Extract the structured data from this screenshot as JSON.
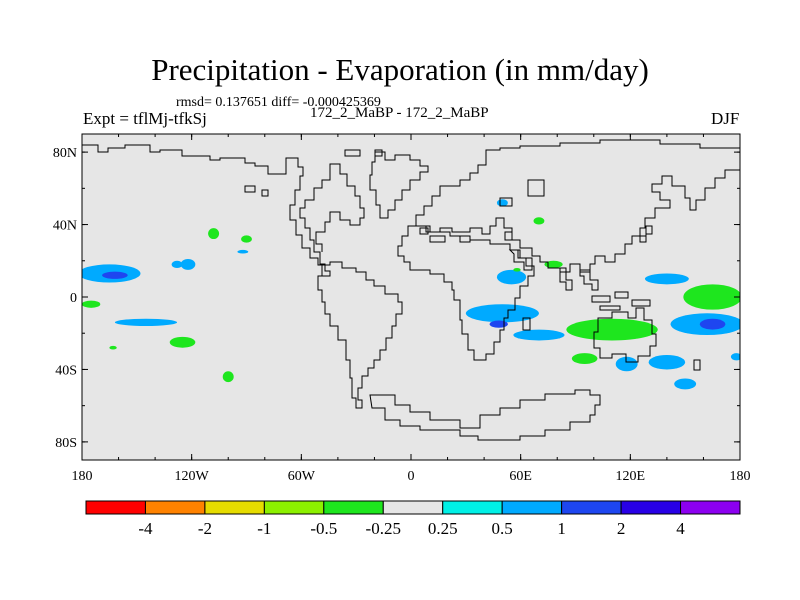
{
  "header": {
    "title": "Precipitation - Evaporation (in mm/day)",
    "stats": "rmsd= 0.137651  diff= -0.000425369",
    "left_label": "Expt = tflMj-tfkSj",
    "center_label": "172_2_MaBP - 172_2_MaBP",
    "right_label": "DJF"
  },
  "chart_data": {
    "type": "contour-map",
    "title": "Precipitation - Evaporation (in mm/day)",
    "season": "DJF",
    "x_axis": {
      "range": [
        -180,
        180
      ],
      "ticks": [
        -180,
        -120,
        -60,
        0,
        60,
        120,
        180
      ],
      "tick_labels": [
        "180",
        "120W",
        "60W",
        "0",
        "60E",
        "120E",
        "180"
      ]
    },
    "y_axis": {
      "range": [
        -90,
        90
      ],
      "ticks": [
        80,
        40,
        0,
        -40,
        -80
      ],
      "tick_labels": [
        "80N",
        "40N",
        "0",
        "40S",
        "80S"
      ]
    },
    "colorbar": {
      "colors": [
        "#ff0000",
        "#ff8200",
        "#e6dc00",
        "#8cf000",
        "#1ee61e",
        "#e6e6e6",
        "#00f0e6",
        "#00aaff",
        "#1e46f0",
        "#2800e6",
        "#8c00f0"
      ],
      "labels": [
        "-4",
        "-2",
        "-1",
        "-0.5",
        "-0.25",
        "0.25",
        "0.5",
        "1",
        "2",
        "4"
      ]
    },
    "background_color": "#e6e6e6",
    "anomaly_patches": [
      {
        "lon": -165,
        "lat": 13,
        "rlon": 17,
        "rlat": 5,
        "level": "0.5"
      },
      {
        "lon": -162,
        "lat": 12,
        "rlon": 7,
        "rlat": 2,
        "level": "1"
      },
      {
        "lon": -145,
        "lat": -14,
        "rlon": 17,
        "rlat": 2,
        "level": "0.5"
      },
      {
        "lon": -175,
        "lat": -4,
        "rlon": 5,
        "rlat": 2,
        "level": "-0.25"
      },
      {
        "lon": -163,
        "lat": -28,
        "rlon": 2,
        "rlat": 1,
        "level": "-0.25"
      },
      {
        "lon": -125,
        "lat": -25,
        "rlon": 7,
        "rlat": 3,
        "level": "-0.25"
      },
      {
        "lon": -108,
        "lat": 35,
        "rlon": 3,
        "rlat": 3,
        "level": "-0.25"
      },
      {
        "lon": -90,
        "lat": 32,
        "rlon": 3,
        "rlat": 2,
        "level": "-0.25"
      },
      {
        "lon": -100,
        "lat": -44,
        "rlon": 3,
        "rlat": 3,
        "level": "-0.25"
      },
      {
        "lon": -122,
        "lat": 18,
        "rlon": 4,
        "rlat": 3,
        "level": "0.5"
      },
      {
        "lon": -128,
        "lat": 18,
        "rlon": 3,
        "rlat": 2,
        "level": "0.5"
      },
      {
        "lon": -92,
        "lat": 25,
        "rlon": 3,
        "rlat": 1,
        "level": "0.5"
      },
      {
        "lon": 55,
        "lat": 11,
        "rlon": 8,
        "rlat": 4,
        "level": "0.5"
      },
      {
        "lon": 50,
        "lat": 52,
        "rlon": 3,
        "rlat": 2,
        "level": "0.5"
      },
      {
        "lon": 70,
        "lat": 42,
        "rlon": 3,
        "rlat": 2,
        "level": "-0.25"
      },
      {
        "lon": 58,
        "lat": 15,
        "rlon": 2,
        "rlat": 1,
        "level": "-0.25"
      },
      {
        "lon": 78,
        "lat": 18,
        "rlon": 5,
        "rlat": 2,
        "level": "-0.25"
      },
      {
        "lon": 50,
        "lat": -9,
        "rlon": 20,
        "rlat": 5,
        "level": "0.5"
      },
      {
        "lon": 48,
        "lat": -15,
        "rlon": 5,
        "rlat": 2,
        "level": "1"
      },
      {
        "lon": 110,
        "lat": -18,
        "rlon": 25,
        "rlat": 6,
        "level": "-0.25"
      },
      {
        "lon": 162,
        "lat": -15,
        "rlon": 20,
        "rlat": 6,
        "level": "0.5"
      },
      {
        "lon": 165,
        "lat": -15,
        "rlon": 7,
        "rlat": 3,
        "level": "1"
      },
      {
        "lon": 165,
        "lat": 0,
        "rlon": 16,
        "rlat": 7,
        "level": "-0.25"
      },
      {
        "lon": 168,
        "lat": 0,
        "rlon": 8,
        "rlat": 3,
        "level": "-0.5"
      },
      {
        "lon": 140,
        "lat": 10,
        "rlon": 12,
        "rlat": 3,
        "level": "0.5"
      },
      {
        "lon": 95,
        "lat": -34,
        "rlon": 7,
        "rlat": 3,
        "level": "-0.25"
      },
      {
        "lon": 118,
        "lat": -37,
        "rlon": 6,
        "rlat": 4,
        "level": "0.5"
      },
      {
        "lon": 140,
        "lat": -36,
        "rlon": 10,
        "rlat": 4,
        "level": "0.5"
      },
      {
        "lon": 150,
        "lat": -48,
        "rlon": 6,
        "rlat": 3,
        "level": "0.5"
      },
      {
        "lon": 70,
        "lat": -21,
        "rlon": 14,
        "rlat": 3,
        "level": "0.5"
      },
      {
        "lon": 178,
        "lat": -33,
        "rlon": 3,
        "rlat": 2,
        "level": "0.5"
      }
    ]
  }
}
